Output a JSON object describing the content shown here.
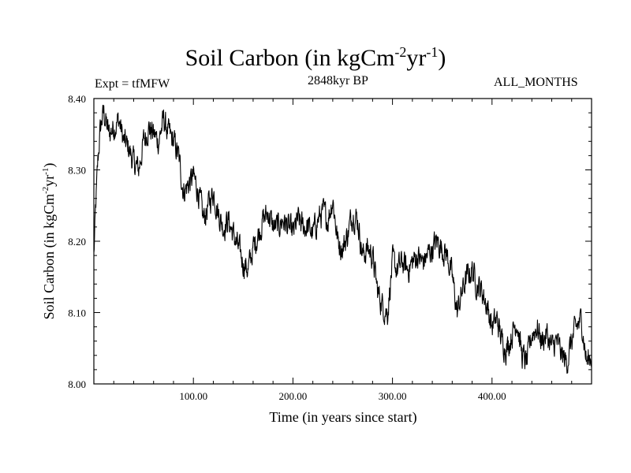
{
  "header": {
    "title_main": "Soil Carbon (in kgCm",
    "title_exp1": "-2",
    "title_mid": "yr",
    "title_exp2": "-1",
    "title_end": ")",
    "left_label": "Expt = tfMFW",
    "center_label": "2848kyr BP",
    "right_label": "ALL_MONTHS"
  },
  "chart_data": {
    "type": "line",
    "xlabel": "Time (in years since start)",
    "ylabel": "Soil Carbon (in kgCm-2yr-1)",
    "xlim": [
      0,
      500
    ],
    "ylim": [
      8.0,
      8.4
    ],
    "x_ticks": [
      100,
      200,
      300,
      400
    ],
    "x_tick_labels": [
      "100.00",
      "200.00",
      "300.00",
      "400.00"
    ],
    "y_ticks": [
      8.0,
      8.1,
      8.2,
      8.3,
      8.4
    ],
    "y_tick_labels": [
      "8.00",
      "8.10",
      "8.20",
      "8.30",
      "8.40"
    ],
    "grid": false,
    "line_color": "#000000",
    "series": [
      {
        "x": [
          0,
          2,
          4,
          6,
          8,
          10,
          15,
          20,
          25,
          30,
          35,
          40,
          45,
          50,
          55,
          60,
          65,
          70,
          75,
          80,
          85,
          90,
          95,
          100,
          105,
          110,
          115,
          120,
          125,
          130,
          135,
          140,
          145,
          150,
          155,
          160,
          165,
          170,
          175,
          180,
          185,
          190,
          195,
          200,
          205,
          210,
          215,
          220,
          225,
          230,
          235,
          240,
          245,
          250,
          255,
          260,
          265,
          270,
          275,
          280,
          285,
          290,
          295,
          300,
          305,
          310,
          315,
          320,
          325,
          330,
          335,
          340,
          345,
          350,
          355,
          360,
          365,
          370,
          375,
          380,
          385,
          390,
          395,
          400,
          405,
          410,
          415,
          420,
          425,
          430,
          435,
          440,
          445,
          450,
          455,
          460,
          465,
          470,
          475,
          480,
          485,
          490,
          495,
          500
        ],
        "y": [
          8.18,
          8.25,
          8.31,
          8.35,
          8.37,
          8.38,
          8.35,
          8.36,
          8.37,
          8.34,
          8.33,
          8.31,
          8.3,
          8.34,
          8.36,
          8.35,
          8.34,
          8.37,
          8.35,
          8.34,
          8.32,
          8.27,
          8.28,
          8.29,
          8.27,
          8.23,
          8.25,
          8.27,
          8.24,
          8.22,
          8.23,
          8.21,
          8.19,
          8.17,
          8.16,
          8.19,
          8.21,
          8.23,
          8.24,
          8.22,
          8.22,
          8.23,
          8.22,
          8.21,
          8.23,
          8.22,
          8.22,
          8.21,
          8.23,
          8.24,
          8.23,
          8.26,
          8.2,
          8.19,
          8.21,
          8.24,
          8.23,
          8.18,
          8.19,
          8.18,
          8.13,
          8.11,
          8.1,
          8.17,
          8.16,
          8.17,
          8.16,
          8.17,
          8.18,
          8.17,
          8.18,
          8.19,
          8.2,
          8.19,
          8.18,
          8.15,
          8.1,
          8.13,
          8.15,
          8.16,
          8.14,
          8.13,
          8.11,
          8.08,
          8.09,
          8.06,
          8.05,
          8.07,
          8.09,
          8.04,
          8.03,
          8.07,
          8.08,
          8.06,
          8.07,
          8.05,
          8.06,
          8.04,
          8.03,
          8.06,
          8.08,
          8.09,
          8.03,
          8.04
        ]
      }
    ]
  }
}
